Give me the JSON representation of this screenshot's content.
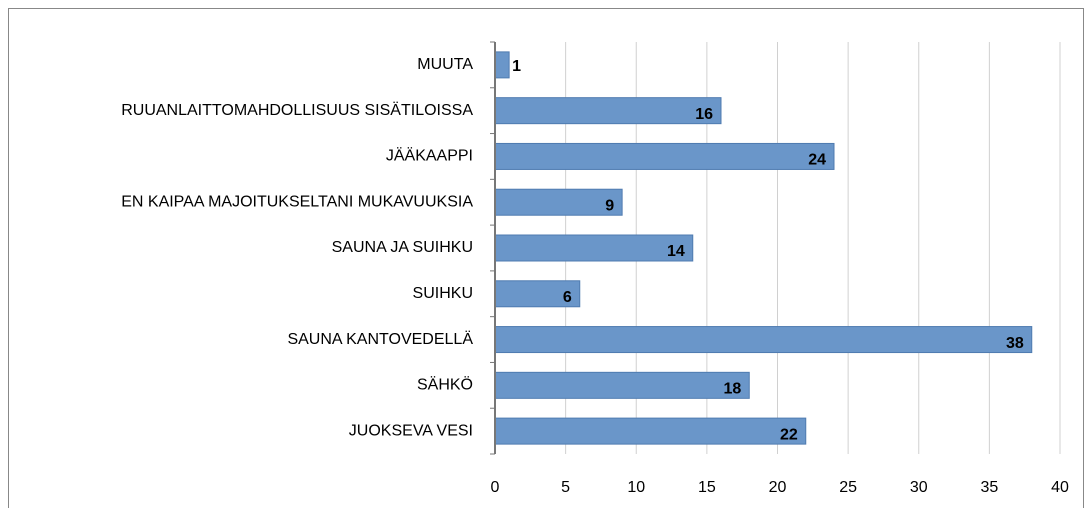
{
  "chart_data": {
    "type": "bar",
    "orientation": "horizontal",
    "categories": [
      "MUUTA",
      "RUUANLAITTOMAHDOLLISUUS SISÄTILOISSA",
      "JÄÄKAAPPI",
      "EN KAIPAA MAJOITUKSELTANI MUKAVUUKSIA",
      "SAUNA JA SUIHKU",
      "SUIHKU",
      "SAUNA KANTOVEDELLÄ",
      "SÄHKÖ",
      "JUOKSEVA VESI"
    ],
    "values": [
      1,
      16,
      24,
      9,
      14,
      6,
      38,
      18,
      22
    ],
    "color": "#6a96c9",
    "xlim": [
      0,
      40
    ],
    "xticks": [
      0,
      5,
      10,
      15,
      20,
      25,
      30,
      35,
      40
    ],
    "grid": true
  }
}
